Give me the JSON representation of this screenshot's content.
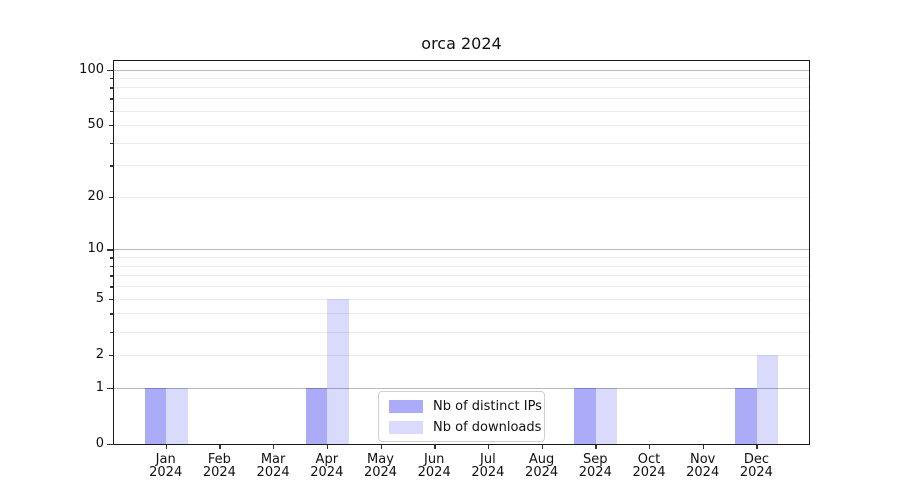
{
  "chart_data": {
    "type": "bar",
    "title": "orca 2024",
    "categories": [
      "Jan 2024",
      "Feb 2024",
      "Mar 2024",
      "Apr 2024",
      "May 2024",
      "Jun 2024",
      "Jul 2024",
      "Aug 2024",
      "Sep 2024",
      "Oct 2024",
      "Nov 2024",
      "Dec 2024"
    ],
    "x_labels": [
      {
        "month": "Jan",
        "year": "2024"
      },
      {
        "month": "Feb",
        "year": "2024"
      },
      {
        "month": "Mar",
        "year": "2024"
      },
      {
        "month": "Apr",
        "year": "2024"
      },
      {
        "month": "May",
        "year": "2024"
      },
      {
        "month": "Jun",
        "year": "2024"
      },
      {
        "month": "Jul",
        "year": "2024"
      },
      {
        "month": "Aug",
        "year": "2024"
      },
      {
        "month": "Sep",
        "year": "2024"
      },
      {
        "month": "Oct",
        "year": "2024"
      },
      {
        "month": "Nov",
        "year": "2024"
      },
      {
        "month": "Dec",
        "year": "2024"
      }
    ],
    "series": [
      {
        "name": "Nb of distinct IPs",
        "color": "rgba(10,10,235,0.34)",
        "color_hex_on_white": "#acacf8",
        "values": [
          1,
          0,
          0,
          1,
          0,
          0,
          0,
          0,
          1,
          0,
          0,
          1
        ]
      },
      {
        "name": "Nb of downloads",
        "color": "rgba(10,10,235,0.15)",
        "color_hex_on_white": "#dadafb",
        "values": [
          1,
          0,
          0,
          5,
          0,
          0,
          0,
          0,
          1,
          0,
          0,
          2
        ]
      }
    ],
    "y_axis": {
      "scale": "log1p",
      "ticks": [
        0,
        1,
        2,
        5,
        10,
        20,
        50,
        100
      ],
      "major_ticks": [
        0,
        1,
        10,
        100
      ],
      "gridlines": {
        "major": [
          1,
          10,
          100
        ],
        "minor": [
          2,
          3,
          4,
          5,
          6,
          7,
          8,
          9,
          20,
          30,
          40,
          50,
          60,
          70,
          80,
          90
        ]
      },
      "ylim_top": 113
    },
    "legend": {
      "position": "lower center"
    },
    "grid": "on",
    "colors": {
      "major_grid": "#b9b9b9",
      "minor_grid": "#ebebeb",
      "spine": "#1a1a1a"
    }
  }
}
